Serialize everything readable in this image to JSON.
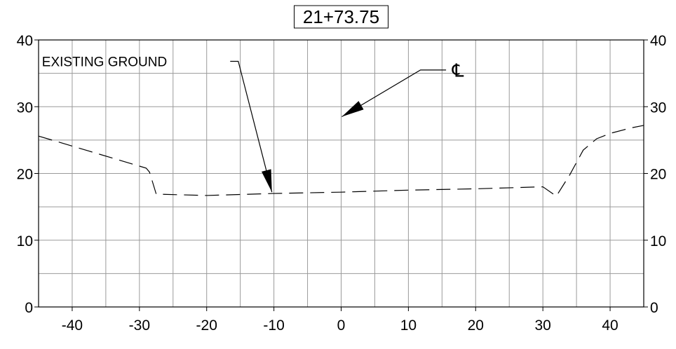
{
  "chart_data": {
    "type": "line",
    "title": "21+73.75",
    "xlim": [
      -45,
      45
    ],
    "ylim": [
      0,
      40
    ],
    "x_ticks": [
      -40,
      -30,
      -20,
      -10,
      0,
      10,
      20,
      30,
      40
    ],
    "y_ticks": [
      0,
      10,
      20,
      30,
      40
    ],
    "x_tick_labels": [
      "-40",
      "-30",
      "-20",
      "-10",
      "0",
      "10",
      "20",
      "30",
      "40"
    ],
    "y_tick_labels": [
      "0",
      "10",
      "20",
      "30",
      "40"
    ],
    "grid": true,
    "series": [
      {
        "name": "EXISTING GROUND",
        "style": "dashed",
        "x": [
          -45,
          -29,
          -28.5,
          -27.5,
          -20,
          -10,
          0,
          10,
          20,
          30,
          32,
          34,
          36,
          38,
          40,
          43,
          45
        ],
        "y": [
          25.6,
          20.8,
          20.2,
          16.9,
          16.7,
          17.0,
          17.2,
          17.5,
          17.7,
          18.0,
          16.6,
          19.8,
          23.5,
          25.2,
          26.0,
          26.8,
          27.2
        ]
      }
    ],
    "annotations": [
      {
        "label": "EXISTING GROUND",
        "label_at": [
          -44.5,
          36.8
        ],
        "leader_from": [
          -16.5,
          36.8
        ],
        "elbow": [
          -15.3,
          36.8
        ],
        "arrow_to": [
          -10.3,
          17.2
        ]
      },
      {
        "label": "℄",
        "label_at": [
          16.5,
          34.5
        ],
        "leader_from": [
          15.6,
          35.5
        ],
        "elbow": [
          11.8,
          35.5
        ],
        "arrow_to": [
          0.1,
          28.5
        ]
      }
    ]
  }
}
